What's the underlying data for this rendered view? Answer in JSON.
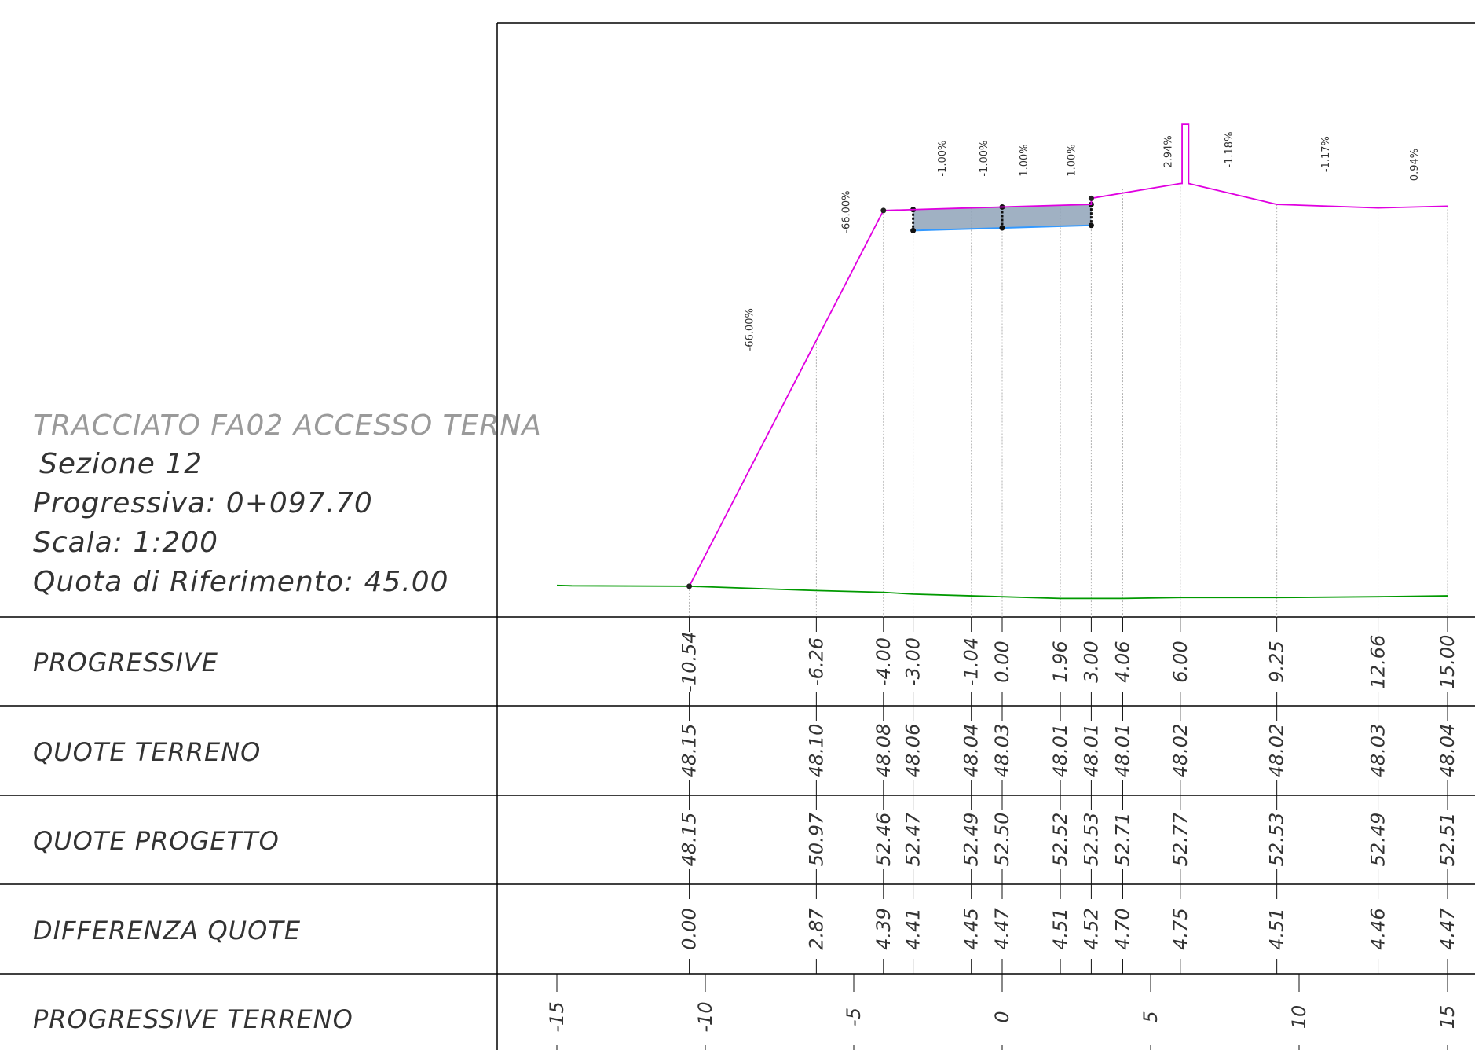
{
  "header": {
    "title": "TRACCIATO FA02 ACCESSO TERNA",
    "section": "Sezione 12",
    "progressive": "Progressiva: 0+097.70",
    "scale": "Scala: 1:200",
    "reference": "Quota di Riferimento: 45.00"
  },
  "colors": {
    "terrain": "#009900",
    "project": "#e000e0",
    "pavement_fill": "#8fa3b8",
    "pavement_edge": "#3399ff",
    "frame": "#000000",
    "guide": "#b0b0b0"
  },
  "rows": [
    {
      "key": "progressive",
      "label": "PROGRESSIVE"
    },
    {
      "key": "terrain",
      "label": "QUOTE TERRENO"
    },
    {
      "key": "project",
      "label": "QUOTE PROGETTO"
    },
    {
      "key": "diff",
      "label": "DIFFERENZA QUOTE"
    },
    {
      "key": "ground_prog",
      "label": "PROGRESSIVE TERRENO"
    }
  ],
  "chart_data": {
    "type": "line",
    "reference_elevation": 45.0,
    "stations": [
      {
        "progressive": "-10.54",
        "terrain": "48.15",
        "project": "48.15",
        "diff": "0.00"
      },
      {
        "progressive": "-6.26",
        "terrain": "48.10",
        "project": "50.97",
        "diff": "2.87"
      },
      {
        "progressive": "-4.00",
        "terrain": "48.08",
        "project": "52.46",
        "diff": "4.39"
      },
      {
        "progressive": "-3.00",
        "terrain": "48.06",
        "project": "52.47",
        "diff": "4.41"
      },
      {
        "progressive": "-1.04",
        "terrain": "48.04",
        "project": "52.49",
        "diff": "4.45"
      },
      {
        "progressive": "0.00",
        "terrain": "48.03",
        "project": "52.50",
        "diff": "4.47"
      },
      {
        "progressive": "1.96",
        "terrain": "48.01",
        "project": "52.52",
        "diff": "4.51"
      },
      {
        "progressive": "3.00",
        "terrain": "48.01",
        "project": "52.53",
        "diff": "4.52"
      },
      {
        "progressive": "4.06",
        "terrain": "48.01",
        "project": "52.71",
        "diff": "4.70"
      },
      {
        "progressive": "6.00",
        "terrain": "48.02",
        "project": "52.77",
        "diff": "4.75"
      },
      {
        "progressive": "9.25",
        "terrain": "48.02",
        "project": "52.53",
        "diff": "4.51"
      },
      {
        "progressive": "12.66",
        "terrain": "48.03",
        "project": "52.49",
        "diff": "4.46"
      },
      {
        "progressive": "15.00",
        "terrain": "48.04",
        "project": "52.51",
        "diff": "4.47"
      }
    ],
    "ground_ticks": [
      "-15",
      "-10",
      "-5",
      "0",
      "5",
      "10",
      "15"
    ],
    "terrain_line": [
      [
        -15.0,
        48.16
      ],
      [
        -14.5,
        48.155
      ],
      [
        -10.54,
        48.15
      ],
      [
        -6.26,
        48.1
      ],
      [
        -4.0,
        48.08
      ],
      [
        -3.0,
        48.06
      ],
      [
        -1.04,
        48.04
      ],
      [
        0.0,
        48.03
      ],
      [
        1.96,
        48.01
      ],
      [
        3.0,
        48.01
      ],
      [
        4.06,
        48.01
      ],
      [
        6.0,
        48.02
      ],
      [
        9.25,
        48.02
      ],
      [
        12.66,
        48.03
      ],
      [
        15.0,
        48.04
      ]
    ],
    "project_line": [
      [
        -10.54,
        48.15
      ],
      [
        -4.0,
        52.46
      ],
      [
        -3.0,
        52.47
      ],
      [
        -1.04,
        52.49
      ],
      [
        0.0,
        52.5
      ],
      [
        1.96,
        52.52
      ],
      [
        3.0,
        52.53
      ],
      [
        3.0,
        52.6
      ],
      [
        6.0,
        52.77
      ],
      [
        6.06,
        52.77
      ],
      [
        6.06,
        53.45
      ],
      [
        6.28,
        53.45
      ],
      [
        6.28,
        52.77
      ],
      [
        9.25,
        52.53
      ],
      [
        12.66,
        52.49
      ],
      [
        15.0,
        52.51
      ]
    ],
    "pavement": {
      "top": [
        [
          -3.0,
          52.47
        ],
        [
          3.0,
          52.53
        ]
      ],
      "bottom": [
        [
          -3.0,
          52.23
        ],
        [
          3.0,
          52.29
        ]
      ],
      "markers": [
        -3.0,
        0.0,
        3.0
      ]
    },
    "slope_labels": [
      {
        "text": "-66.00%",
        "x": -8.4,
        "y": 50.85
      },
      {
        "text": "-66.00%",
        "x": -5.15,
        "y": 52.2
      },
      {
        "text": "-1.00%",
        "x": -1.9,
        "y": 52.85
      },
      {
        "text": "-1.00%",
        "x": -0.5,
        "y": 52.85
      },
      {
        "text": "1.00%",
        "x": 0.85,
        "y": 52.85
      },
      {
        "text": "1.00%",
        "x": 2.45,
        "y": 52.85
      },
      {
        "text": "2.94%",
        "x": 5.7,
        "y": 52.95
      },
      {
        "text": "-1.18%",
        "x": 7.75,
        "y": 52.95
      },
      {
        "text": "-1.17%",
        "x": 11.0,
        "y": 52.9
      },
      {
        "text": "0.94%",
        "x": 14.0,
        "y": 52.8
      }
    ]
  }
}
